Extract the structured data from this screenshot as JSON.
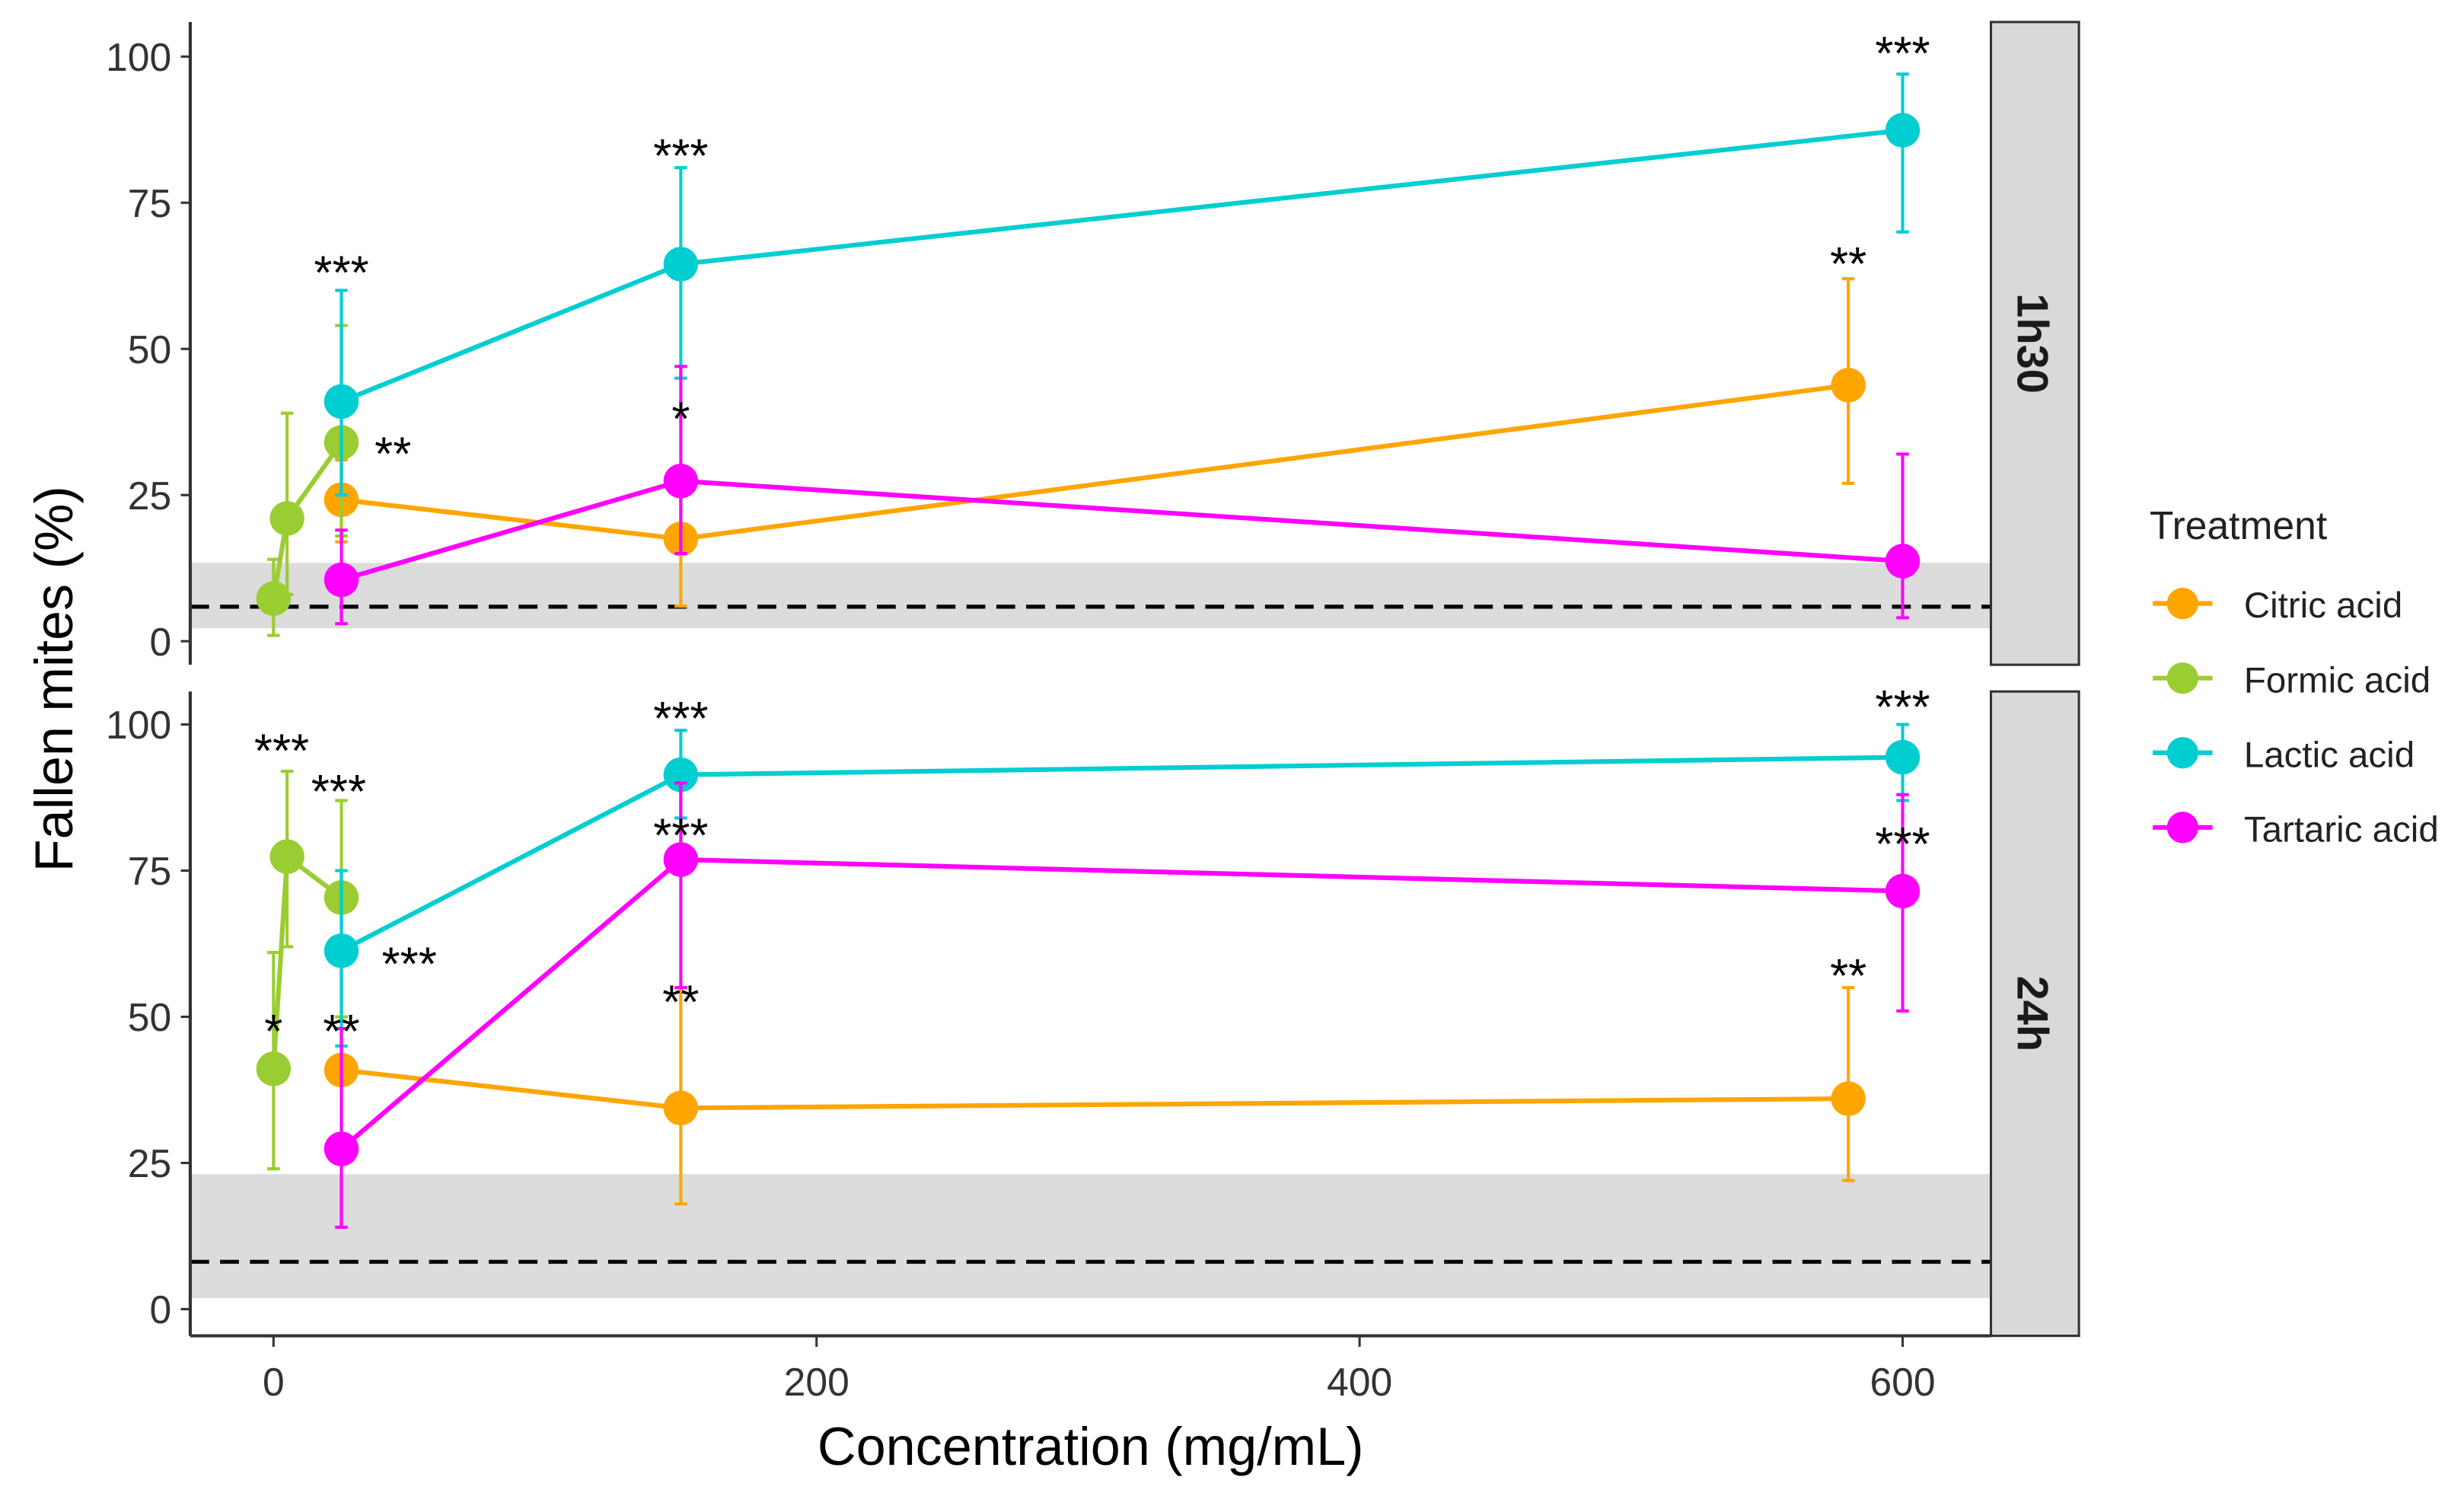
{
  "chart_data": {
    "type": "line",
    "ylabel": "Fallen mites (%)",
    "xlabel": "Concentration (mg/mL)",
    "xlim": [
      -30,
      635
    ],
    "ylim": [
      0,
      100
    ],
    "x_ticks": [
      0,
      200,
      400,
      600
    ],
    "y_ticks": [
      0,
      25,
      50,
      75,
      100
    ],
    "grid": false,
    "legend": {
      "title": "Treatment",
      "placement": "right"
    },
    "colors": {
      "Citric acid": "#FFA500",
      "Formic acid": "#9ACD32",
      "Lactic acid": "#00CED1",
      "Tartaric acid": "#FF00FF"
    },
    "panels": [
      {
        "label": "1h30",
        "control": {
          "mean": 5.9,
          "band": [
            2.2,
            13.4
          ]
        },
        "series": [
          {
            "name": "Citric acid",
            "points": [
              [
                25,
                24.2,
                17,
                31
              ],
              [
                150,
                17.5,
                6,
                29
              ],
              [
                580,
                43.8,
                27,
                62
              ]
            ]
          },
          {
            "name": "Formic acid",
            "points": [
              [
                0,
                7.3,
                1,
                14
              ],
              [
                5,
                21,
                8,
                39
              ],
              [
                25,
                34,
                18,
                54
              ]
            ]
          },
          {
            "name": "Lactic acid",
            "points": [
              [
                25,
                41,
                25,
                60
              ],
              [
                150,
                64.5,
                45,
                81
              ],
              [
                600,
                87.4,
                70,
                97
              ]
            ]
          },
          {
            "name": "Tartaric acid",
            "points": [
              [
                25,
                10.5,
                3,
                19
              ],
              [
                150,
                27.4,
                15,
                47
              ],
              [
                600,
                13.7,
                4,
                32
              ]
            ]
          }
        ],
        "annotations": [
          {
            "text": "***",
            "x": 600,
            "y": 101.5
          },
          {
            "text": "***",
            "x": 150,
            "y": 84
          },
          {
            "text": "***",
            "x": 25,
            "y": 64
          },
          {
            "text": "**",
            "x": 580,
            "y": 65.5
          },
          {
            "text": "**",
            "x": 44,
            "y": 33
          },
          {
            "text": "*",
            "x": 150,
            "y": 39
          }
        ]
      },
      {
        "label": "24h",
        "control": {
          "mean": 8.1,
          "band": [
            1.9,
            23.1
          ]
        },
        "series": [
          {
            "name": "Citric acid",
            "points": [
              [
                25,
                40.9,
                30,
                50
              ],
              [
                150,
                34.4,
                18,
                55
              ],
              [
                580,
                36,
                22,
                55
              ]
            ]
          },
          {
            "name": "Formic acid",
            "points": [
              [
                0,
                41.1,
                24,
                61
              ],
              [
                5,
                77.4,
                62,
                92
              ],
              [
                25,
                70.4,
                50,
                87
              ]
            ]
          },
          {
            "name": "Lactic acid",
            "points": [
              [
                25,
                61.3,
                45,
                75
              ],
              [
                150,
                91.4,
                84,
                99
              ],
              [
                600,
                94.4,
                87,
                100
              ]
            ]
          },
          {
            "name": "Tartaric acid",
            "points": [
              [
                25,
                27.4,
                14,
                48
              ],
              [
                150,
                76.9,
                55,
                90
              ],
              [
                600,
                71.5,
                51,
                88
              ]
            ]
          }
        ],
        "annotations": [
          {
            "text": "***",
            "x": 600,
            "y": 104
          },
          {
            "text": "***",
            "x": 150,
            "y": 102
          },
          {
            "text": "***",
            "x": 150,
            "y": 82
          },
          {
            "text": "***",
            "x": 600,
            "y": 80.5
          },
          {
            "text": "**",
            "x": 580,
            "y": 58
          },
          {
            "text": "**",
            "x": 150,
            "y": 53.5
          },
          {
            "text": "***",
            "x": 3,
            "y": 96.5
          },
          {
            "text": "***",
            "x": 24,
            "y": 89.5
          },
          {
            "text": "***",
            "x": 50,
            "y": 60
          },
          {
            "text": "*",
            "x": 0,
            "y": 48.5
          },
          {
            "text": "**",
            "x": 25,
            "y": 48.5
          }
        ]
      }
    ],
    "point_format": "[x, mean, lower, upper]"
  }
}
